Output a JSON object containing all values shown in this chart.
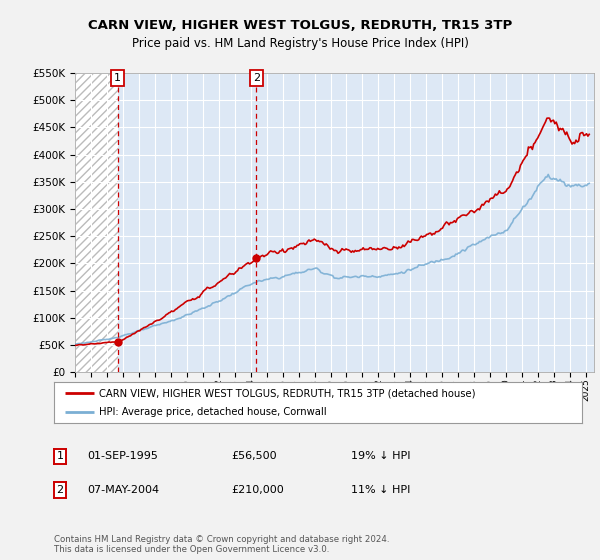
{
  "title": "CARN VIEW, HIGHER WEST TOLGUS, REDRUTH, TR15 3TP",
  "subtitle": "Price paid vs. HM Land Registry's House Price Index (HPI)",
  "legend_line1": "CARN VIEW, HIGHER WEST TOLGUS, REDRUTH, TR15 3TP (detached house)",
  "legend_line2": "HPI: Average price, detached house, Cornwall",
  "annotation1_date": "01-SEP-1995",
  "annotation1_price": "£56,500",
  "annotation1_hpi": "19% ↓ HPI",
  "annotation2_date": "07-MAY-2004",
  "annotation2_price": "£210,000",
  "annotation2_hpi": "11% ↓ HPI",
  "footer": "Contains HM Land Registry data © Crown copyright and database right 2024.\nThis data is licensed under the Open Government Licence v3.0.",
  "sale1_x": 1995.67,
  "sale1_y": 56500,
  "sale2_x": 2004.35,
  "sale2_y": 210000,
  "ylim": [
    0,
    550000
  ],
  "xlim_start": 1993,
  "xlim_end": 2025.5,
  "hpi_color": "#7bafd4",
  "price_color": "#cc0000",
  "background_color": "#f2f2f2",
  "plot_bg_color": "#dde8f5",
  "grid_color": "#ffffff"
}
